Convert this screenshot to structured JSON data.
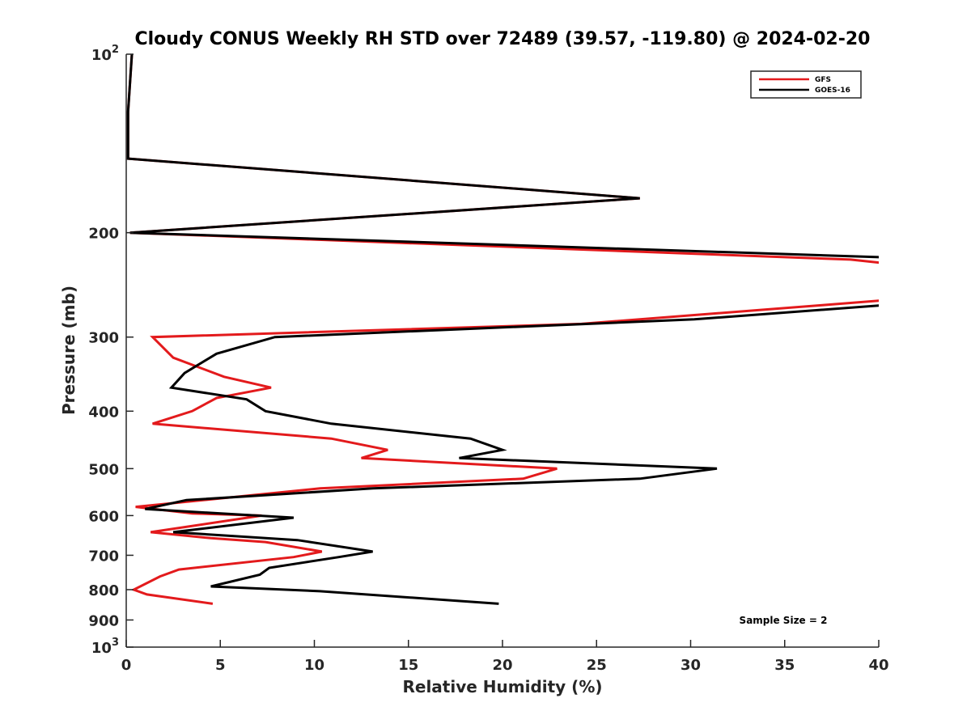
{
  "chart_data": {
    "type": "line",
    "title": "Cloudy CONUS Weekly RH STD over 72489 (39.57, -119.80) @ 2024-02-20",
    "xlabel": "Relative Humidity (%)",
    "ylabel": "Pressure (mb)",
    "xlim": [
      0,
      40
    ],
    "ylim": [
      100,
      1000
    ],
    "y_scale": "log",
    "y_reversed": true,
    "x_ticks": [
      "0",
      "5",
      "10",
      "15",
      "20",
      "25",
      "30",
      "35",
      "40"
    ],
    "y_ticks": [
      {
        "value": 100,
        "base": "10",
        "exp": "2"
      },
      {
        "value": 200,
        "label": "200"
      },
      {
        "value": 300,
        "label": "300"
      },
      {
        "value": 400,
        "label": "400"
      },
      {
        "value": 500,
        "label": "500"
      },
      {
        "value": 600,
        "label": "600"
      },
      {
        "value": 700,
        "label": "700"
      },
      {
        "value": 800,
        "label": "800"
      },
      {
        "value": 900,
        "label": "900"
      },
      {
        "value": 1000,
        "base": "10",
        "exp": "3"
      }
    ],
    "legend_position": "top-right",
    "grid": false,
    "annotation": "Sample Size = 2",
    "series": [
      {
        "name": "GFS",
        "color": "#e31a1c",
        "points": [
          [
            0.3,
            100
          ],
          [
            0.1,
            125
          ],
          [
            0.1,
            150
          ],
          [
            27.3,
            175
          ],
          [
            0.2,
            200
          ],
          [
            38.5,
            222
          ],
          [
            40.2,
            225
          ],
          [
            40.3,
            260
          ],
          [
            37.0,
            265
          ],
          [
            24.2,
            285
          ],
          [
            1.4,
            300
          ],
          [
            2.5,
            325
          ],
          [
            5.2,
            350
          ],
          [
            7.7,
            365
          ],
          [
            4.8,
            380
          ],
          [
            3.5,
            400
          ],
          [
            1.4,
            420
          ],
          [
            10.9,
            445
          ],
          [
            13.9,
            465
          ],
          [
            12.5,
            480
          ],
          [
            22.9,
            500
          ],
          [
            21.1,
            520
          ],
          [
            10.3,
            540
          ],
          [
            0.5,
            580
          ],
          [
            3.5,
            595
          ],
          [
            7.2,
            600
          ],
          [
            1.3,
            640
          ],
          [
            4.5,
            655
          ],
          [
            7.4,
            665
          ],
          [
            10.4,
            690
          ],
          [
            8.9,
            705
          ],
          [
            2.8,
            740
          ],
          [
            1.8,
            760
          ],
          [
            0.4,
            800
          ],
          [
            1.1,
            815
          ],
          [
            4.6,
            845
          ]
        ]
      },
      {
        "name": "GOES-16",
        "color": "#000000",
        "points": [
          [
            0.3,
            100
          ],
          [
            0.1,
            125
          ],
          [
            0.1,
            150
          ],
          [
            27.3,
            175
          ],
          [
            0.2,
            200
          ],
          [
            40.2,
            220
          ],
          [
            40.3,
            265
          ],
          [
            30.2,
            280
          ],
          [
            7.9,
            300
          ],
          [
            4.8,
            320
          ],
          [
            3.1,
            345
          ],
          [
            2.4,
            365
          ],
          [
            6.4,
            382
          ],
          [
            7.4,
            400
          ],
          [
            10.9,
            420
          ],
          [
            18.3,
            445
          ],
          [
            20.0,
            465
          ],
          [
            17.7,
            480
          ],
          [
            31.4,
            500
          ],
          [
            27.3,
            520
          ],
          [
            13.1,
            540
          ],
          [
            3.2,
            565
          ],
          [
            1.0,
            585
          ],
          [
            8.9,
            605
          ],
          [
            2.5,
            640
          ],
          [
            9.1,
            660
          ],
          [
            13.1,
            690
          ],
          [
            11.3,
            705
          ],
          [
            7.6,
            735
          ],
          [
            7.1,
            755
          ],
          [
            4.5,
            790
          ],
          [
            10.3,
            805
          ],
          [
            19.8,
            845
          ]
        ]
      }
    ]
  }
}
